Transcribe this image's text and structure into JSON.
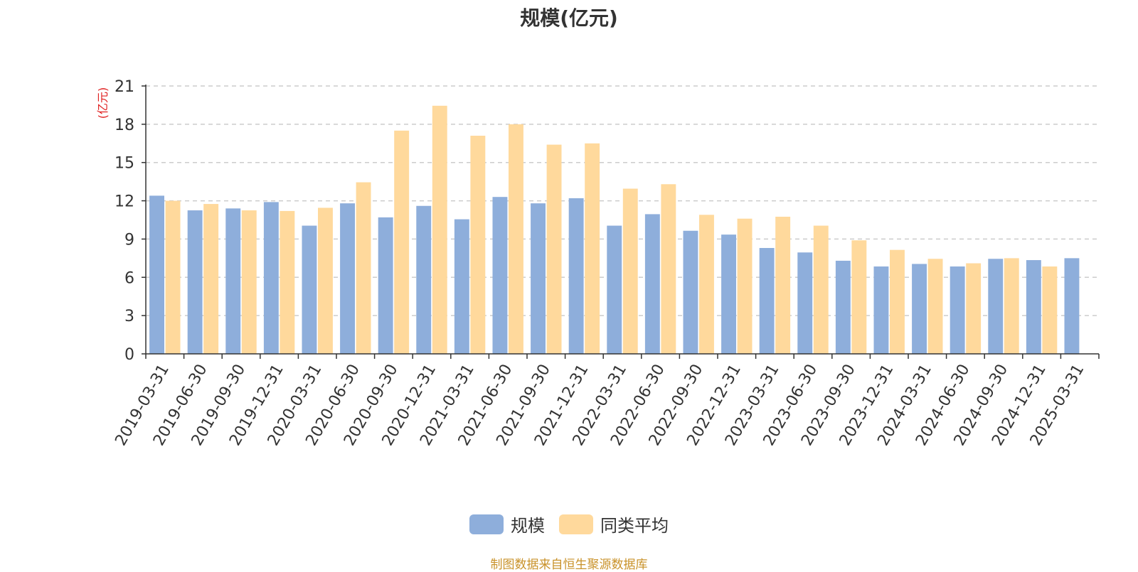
{
  "chart_data": {
    "type": "bar",
    "title": "规模(亿元)",
    "ylabel": "(亿元)",
    "ylim": [
      0,
      21
    ],
    "yticks": [
      0,
      3,
      6,
      9,
      12,
      15,
      18,
      21
    ],
    "grid": true,
    "legend_position": "bottom",
    "categories": [
      "2019-03-31",
      "2019-06-30",
      "2019-09-30",
      "2019-12-31",
      "2020-03-31",
      "2020-06-30",
      "2020-09-30",
      "2020-12-31",
      "2021-03-31",
      "2021-06-30",
      "2021-09-30",
      "2021-12-31",
      "2022-03-31",
      "2022-06-30",
      "2022-09-30",
      "2022-12-31",
      "2023-03-31",
      "2023-06-30",
      "2023-09-30",
      "2023-12-31",
      "2024-03-31",
      "2024-06-30",
      "2024-09-30",
      "2024-12-31",
      "2025-03-31"
    ],
    "series": [
      {
        "name": "规模",
        "color": "#8eaedb",
        "values": [
          12.4,
          11.25,
          11.4,
          11.9,
          10.05,
          11.8,
          10.7,
          11.6,
          10.55,
          12.3,
          11.8,
          12.2,
          10.05,
          10.95,
          9.65,
          9.35,
          8.3,
          7.95,
          7.3,
          6.85,
          7.05,
          6.85,
          7.45,
          7.35,
          7.5
        ]
      },
      {
        "name": "同类平均",
        "color": "#ffd99c",
        "values": [
          12.0,
          11.75,
          11.25,
          11.2,
          11.45,
          13.45,
          17.5,
          19.45,
          17.1,
          18.0,
          16.4,
          16.5,
          12.95,
          13.3,
          10.9,
          10.6,
          10.75,
          10.05,
          8.9,
          8.15,
          7.45,
          7.1,
          7.5,
          6.85,
          null
        ]
      }
    ]
  },
  "footer": {
    "source": "制图数据来自恒生聚源数据库"
  }
}
